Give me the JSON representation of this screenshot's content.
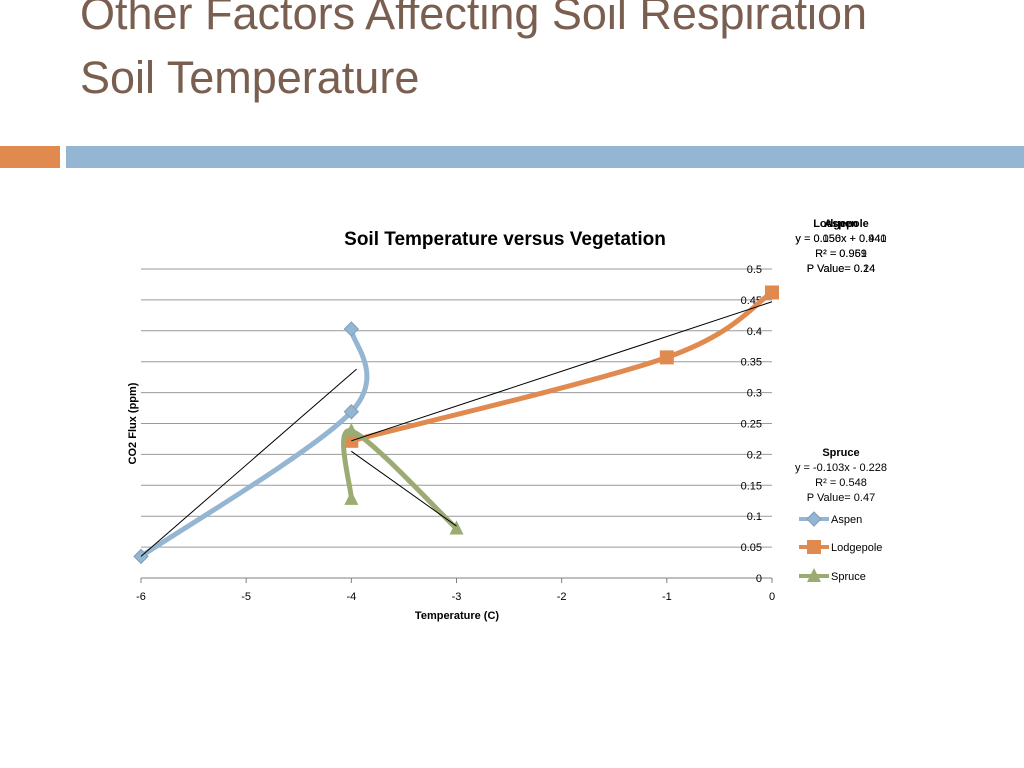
{
  "slide": {
    "title_line1": "Other Factors Affecting Soil Respiration",
    "title_line2": "Soil Temperature"
  },
  "colors": {
    "title": "#7a5f50",
    "accent_orange": "#e08a4f",
    "accent_blue": "#94b6d2",
    "aspen": "#94b6d2",
    "lodgepole": "#e08a4f",
    "spruce": "#9bab72"
  },
  "chart_data": {
    "type": "scatter",
    "title": "Soil Temperature versus Vegetation",
    "xlabel": "Temperature (C)",
    "ylabel": "CO2 Flux (ppm)",
    "xlim": [
      -6,
      0
    ],
    "ylim": [
      0,
      0.5
    ],
    "xticks": [
      "-6",
      "-5",
      "-4",
      "-3",
      "-2",
      "-1",
      "0"
    ],
    "yticks": [
      "0",
      "0.05",
      "0.1",
      "0.15",
      "0.2",
      "0.25",
      "0.3",
      "0.35",
      "0.4",
      "0.45",
      "0.5"
    ],
    "grid": true,
    "legend": "right",
    "series": [
      {
        "name": "Aspen",
        "color": "#94b6d2",
        "marker": "diamond",
        "smooth": true,
        "points": [
          [
            -4,
            0.403
          ],
          [
            -4,
            0.269
          ],
          [
            -6,
            0.035
          ]
        ],
        "trendline": [
          [
            -6,
            0.035
          ],
          [
            -3.95,
            0.338
          ]
        ],
        "equation": {
          "heading": "Aspen",
          "equation": "y = 0.150x + 0.940",
          "r2": "R² = 0.959",
          "pvalue": "P Value= 0.14"
        }
      },
      {
        "name": "Lodgepole",
        "color": "#e08a4f",
        "marker": "square",
        "smooth": true,
        "points": [
          [
            0,
            0.462
          ],
          [
            -1,
            0.357
          ],
          [
            -4,
            0.222
          ]
        ],
        "trendline": [
          [
            -4,
            0.222
          ],
          [
            0,
            0.447
          ]
        ],
        "equation": {
          "heading": "Lodgepole",
          "equation": "y = 0.056x + 0.441",
          "r2": "R² = 0.961",
          "pvalue": "P Value= 0.24"
        }
      },
      {
        "name": "Spruce",
        "color": "#9bab72",
        "marker": "triangle",
        "smooth": true,
        "points": [
          [
            -4,
            0.128
          ],
          [
            -4,
            0.238
          ],
          [
            -3,
            0.08
          ]
        ],
        "trendline": [
          [
            -4,
            0.205
          ],
          [
            -3,
            0.084
          ]
        ],
        "equation": {
          "heading": "Spruce",
          "equation": "y = -0.103x - 0.228",
          "r2": "R² = 0.548",
          "pvalue": "P Value= 0.47"
        }
      }
    ]
  }
}
